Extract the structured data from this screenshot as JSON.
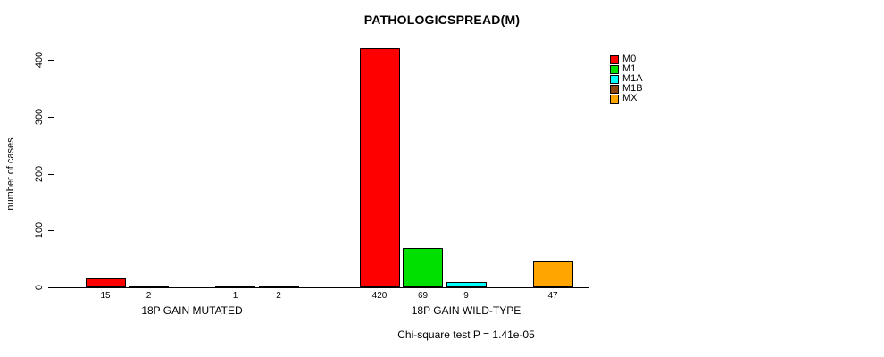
{
  "chart_data": {
    "type": "bar",
    "title": "PATHOLOGICSPREAD(M)",
    "ylabel": "number of cases",
    "xlabel": "",
    "footnote": "Chi-square test P = 1.41e-05",
    "groups": [
      "18P GAIN MUTATED",
      "18P GAIN WILD-TYPE"
    ],
    "y_ticks": [
      0,
      100,
      200,
      300,
      400
    ],
    "ylim": [
      0,
      400
    ],
    "grid": false,
    "legend_position": "top-right",
    "series": [
      {
        "name": "M0",
        "color": "#FF0000",
        "values": [
          15,
          420
        ]
      },
      {
        "name": "M1",
        "color": "#00E000",
        "values": [
          2,
          69
        ]
      },
      {
        "name": "M1A",
        "color": "#00FFFF",
        "values": [
          0,
          9
        ]
      },
      {
        "name": "M1B",
        "color": "#8B4513",
        "values": [
          1,
          0
        ]
      },
      {
        "name": "MX",
        "color": "#FFA500",
        "values": [
          2,
          47
        ]
      }
    ]
  }
}
